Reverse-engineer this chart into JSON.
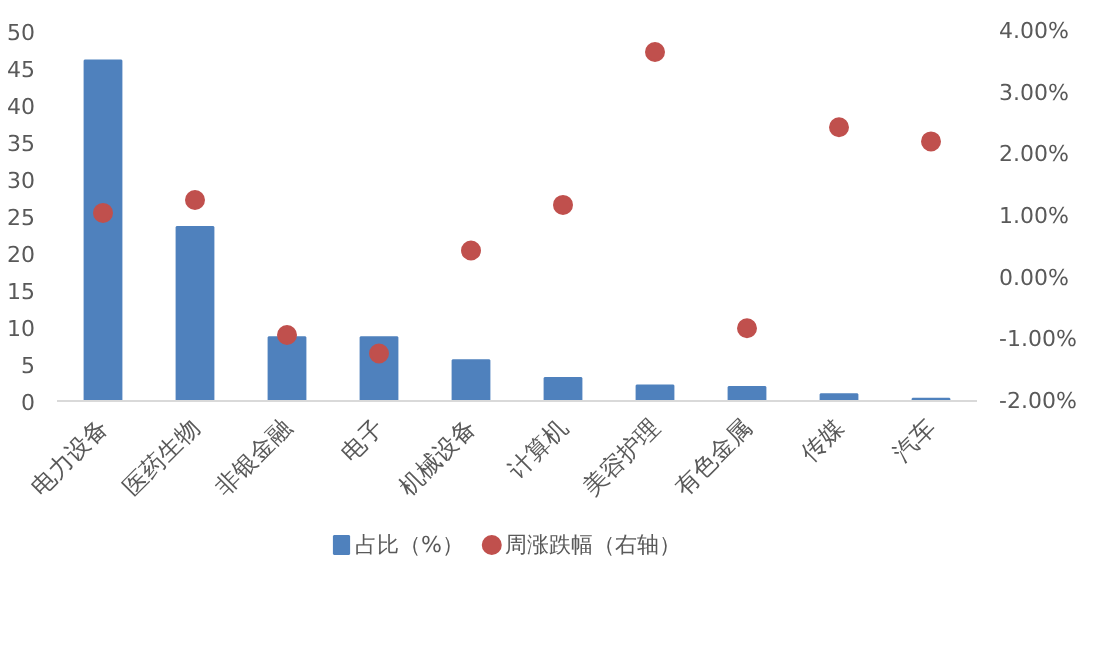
{
  "chart_data": {
    "type": "bar",
    "categories": [
      "电力设备",
      "医药生物",
      "非银金融",
      "电子",
      "机械设备",
      "计算机",
      "美容护理",
      "有色金属",
      "传媒",
      "汽车"
    ],
    "series": [
      {
        "name": "占比（%）",
        "color": "#4f81bd",
        "values": [
          46.0,
          23.5,
          8.6,
          8.6,
          5.5,
          3.1,
          2.1,
          1.9,
          0.9,
          0.3
        ]
      },
      {
        "name": "周涨跌幅（右轴）",
        "type": "scatter",
        "axis": "y2",
        "color": "#c0504d",
        "values": [
          1.05,
          1.26,
          -0.93,
          -1.23,
          0.44,
          1.18,
          3.66,
          -0.82,
          2.44,
          2.21
        ]
      }
    ],
    "ylim": [
      0,
      50
    ],
    "yticks": [
      0,
      5,
      10,
      15,
      20,
      25,
      30,
      35,
      40,
      45,
      50
    ],
    "y2lim": [
      -2,
      4
    ],
    "y2ticks": [
      {
        "value": -2,
        "label": "-2.00%"
      },
      {
        "value": -1,
        "label": "-1.00%"
      },
      {
        "value": 0,
        "label": "0.00%"
      },
      {
        "value": 1,
        "label": "1.00%"
      },
      {
        "value": 2,
        "label": "2.00%"
      },
      {
        "value": 3,
        "label": "3.00%"
      },
      {
        "value": 4,
        "label": "4.00%"
      }
    ],
    "legend": "bottom",
    "grid": false,
    "marker": "circle"
  }
}
